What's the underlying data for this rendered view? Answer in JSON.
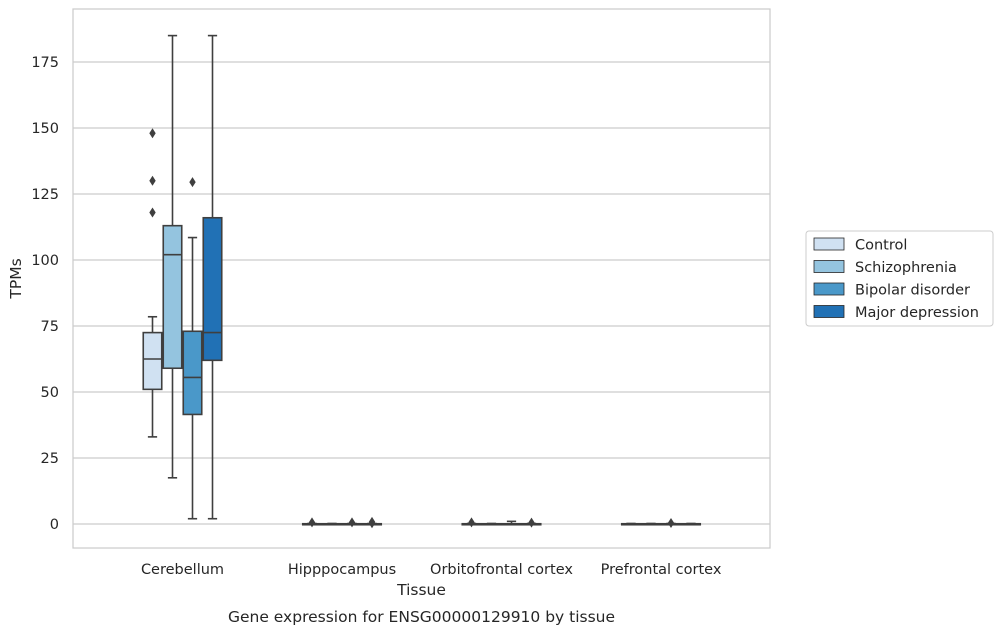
{
  "chart_data": {
    "type": "box",
    "xlabel": "Tissue",
    "ylabel": "TPMs",
    "caption": "Gene expression for ENSG00000129910 by tissue",
    "ylim": [
      -9,
      194
    ],
    "yticks": [
      0,
      25,
      50,
      75,
      100,
      125,
      150,
      175
    ],
    "grid": "horizontal",
    "legend_placement": "right",
    "categories": [
      "Cerebellum",
      "Hipppocampus",
      "Orbitofrontal cortex",
      "Prefrontal cortex"
    ],
    "series": [
      {
        "name": "Control",
        "color": "#d0e1f2",
        "boxes": [
          {
            "whislo": 33,
            "q1": 51,
            "med": 62.5,
            "q3": 72.5,
            "whishi": 78.5,
            "fliers": [
              118,
              130,
              148
            ]
          },
          {
            "whislo": 0,
            "q1": 0,
            "med": 0,
            "q3": 0.1,
            "whishi": 0.2,
            "fliers": [
              0.6
            ]
          },
          {
            "whislo": 0,
            "q1": 0,
            "med": 0,
            "q3": 0.1,
            "whishi": 0.2,
            "fliers": [
              0.6
            ]
          },
          {
            "whislo": 0,
            "q1": 0,
            "med": 0,
            "q3": 0.1,
            "whishi": 0.2,
            "fliers": []
          }
        ]
      },
      {
        "name": "Schizophrenia",
        "color": "#94c4df",
        "boxes": [
          {
            "whislo": 17.5,
            "q1": 59,
            "med": 102,
            "q3": 113,
            "whishi": 185,
            "fliers": []
          },
          {
            "whislo": 0,
            "q1": 0,
            "med": 0,
            "q3": 0.1,
            "whishi": 0.2,
            "fliers": []
          },
          {
            "whislo": 0,
            "q1": 0,
            "med": 0,
            "q3": 0.1,
            "whishi": 0.2,
            "fliers": []
          },
          {
            "whislo": 0,
            "q1": 0,
            "med": 0,
            "q3": 0.1,
            "whishi": 0.2,
            "fliers": []
          }
        ]
      },
      {
        "name": "Bipolar disorder",
        "color": "#4a98c9",
        "boxes": [
          {
            "whislo": 2,
            "q1": 41.5,
            "med": 55.5,
            "q3": 73,
            "whishi": 108.5,
            "fliers": [
              129.5
            ]
          },
          {
            "whislo": 0,
            "q1": 0,
            "med": 0,
            "q3": 0.1,
            "whishi": 0.2,
            "fliers": [
              0.6
            ]
          },
          {
            "whislo": 0,
            "q1": 0,
            "med": 0,
            "q3": 0.1,
            "whishi": 1,
            "fliers": []
          },
          {
            "whislo": 0,
            "q1": 0,
            "med": 0,
            "q3": 0.1,
            "whishi": 0.2,
            "fliers": [
              0.4
            ]
          }
        ]
      },
      {
        "name": "Major depression",
        "color": "#2171b5",
        "boxes": [
          {
            "whislo": 2,
            "q1": 62,
            "med": 72.5,
            "q3": 116,
            "whishi": 185,
            "fliers": []
          },
          {
            "whislo": 0,
            "q1": 0,
            "med": 0,
            "q3": 0.1,
            "whishi": 0.2,
            "fliers": [
              0.3,
              0.8
            ]
          },
          {
            "whislo": 0,
            "q1": 0,
            "med": 0,
            "q3": 0.1,
            "whishi": 0.2,
            "fliers": [
              0.5
            ]
          },
          {
            "whislo": 0,
            "q1": 0,
            "med": 0,
            "q3": 0.1,
            "whishi": 0.2,
            "fliers": []
          }
        ]
      }
    ]
  }
}
